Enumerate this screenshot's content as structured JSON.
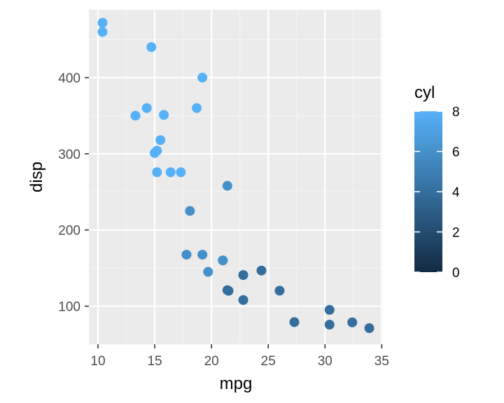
{
  "chart_data": {
    "type": "scatter",
    "title": "",
    "xlabel": "mpg",
    "ylabel": "disp",
    "xlim": [
      9.2,
      35.1
    ],
    "ylim": [
      50,
      489
    ],
    "x_ticks": [
      10,
      15,
      20,
      25,
      30,
      35
    ],
    "y_ticks": [
      100,
      200,
      300,
      400
    ],
    "x_tick_labels": [
      "10",
      "15",
      "20",
      "25",
      "30",
      "35"
    ],
    "y_tick_labels": [
      "100",
      "200",
      "300",
      "400"
    ],
    "grid": true,
    "legend": {
      "title": "cyl",
      "placement": "right",
      "type": "colorbar",
      "min": 0,
      "max": 8,
      "ticks": [
        0,
        2,
        4,
        6,
        8
      ],
      "tick_labels": [
        "0",
        "2",
        "4",
        "6",
        "8"
      ],
      "color_low": "#132B43",
      "color_high": "#56B1F7"
    },
    "points": [
      {
        "x": 21.0,
        "y": 160,
        "cyl": 6
      },
      {
        "x": 21.0,
        "y": 160,
        "cyl": 6
      },
      {
        "x": 22.8,
        "y": 108,
        "cyl": 4
      },
      {
        "x": 21.4,
        "y": 258,
        "cyl": 6
      },
      {
        "x": 18.7,
        "y": 360,
        "cyl": 8
      },
      {
        "x": 18.1,
        "y": 225,
        "cyl": 6
      },
      {
        "x": 14.3,
        "y": 360,
        "cyl": 8
      },
      {
        "x": 24.4,
        "y": 146.7,
        "cyl": 4
      },
      {
        "x": 22.8,
        "y": 140.8,
        "cyl": 4
      },
      {
        "x": 19.2,
        "y": 167.6,
        "cyl": 6
      },
      {
        "x": 17.8,
        "y": 167.6,
        "cyl": 6
      },
      {
        "x": 16.4,
        "y": 275.8,
        "cyl": 8
      },
      {
        "x": 17.3,
        "y": 275.8,
        "cyl": 8
      },
      {
        "x": 15.2,
        "y": 275.8,
        "cyl": 8
      },
      {
        "x": 10.4,
        "y": 472,
        "cyl": 8
      },
      {
        "x": 10.4,
        "y": 460,
        "cyl": 8
      },
      {
        "x": 14.7,
        "y": 440,
        "cyl": 8
      },
      {
        "x": 32.4,
        "y": 78.7,
        "cyl": 4
      },
      {
        "x": 30.4,
        "y": 75.7,
        "cyl": 4
      },
      {
        "x": 33.9,
        "y": 71.1,
        "cyl": 4
      },
      {
        "x": 21.5,
        "y": 120.1,
        "cyl": 4
      },
      {
        "x": 15.5,
        "y": 318,
        "cyl": 8
      },
      {
        "x": 15.2,
        "y": 304,
        "cyl": 8
      },
      {
        "x": 13.3,
        "y": 350,
        "cyl": 8
      },
      {
        "x": 19.2,
        "y": 400,
        "cyl": 8
      },
      {
        "x": 27.3,
        "y": 79,
        "cyl": 4
      },
      {
        "x": 26.0,
        "y": 120.3,
        "cyl": 4
      },
      {
        "x": 30.4,
        "y": 95.1,
        "cyl": 4
      },
      {
        "x": 15.8,
        "y": 351,
        "cyl": 8
      },
      {
        "x": 19.7,
        "y": 145,
        "cyl": 6
      },
      {
        "x": 15.0,
        "y": 301,
        "cyl": 8
      },
      {
        "x": 21.4,
        "y": 121,
        "cyl": 4
      }
    ]
  }
}
